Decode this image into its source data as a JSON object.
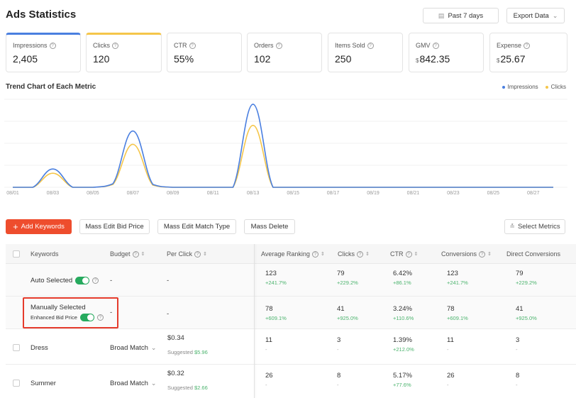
{
  "header": {
    "title": "Ads Statistics",
    "date_label": "Past 7 days",
    "export_label": "Export Data"
  },
  "metrics": [
    {
      "label": "Impressions",
      "value": "2,405",
      "accent": "#4a7fe0"
    },
    {
      "label": "Clicks",
      "value": "120",
      "accent": "#f5c64a"
    },
    {
      "label": "CTR",
      "value": "55%"
    },
    {
      "label": "Orders",
      "value": "102"
    },
    {
      "label": "Items Sold",
      "value": "250"
    },
    {
      "label": "GMV",
      "currency": "$",
      "value": "842.35"
    },
    {
      "label": "Expense",
      "currency": "$",
      "value": "25.67"
    }
  ],
  "chart": {
    "title": "Trend Chart of Each Metric",
    "legend": [
      {
        "name": "Impressions",
        "color": "#4a7fe0"
      },
      {
        "name": "Clicks",
        "color": "#f5c64a"
      }
    ],
    "x_labels": [
      "08/01",
      "08/03",
      "08/05",
      "08/07",
      "08/09",
      "08/11",
      "08/13",
      "08/15",
      "08/17",
      "08/19",
      "08/21",
      "08/23",
      "08/25",
      "08/27"
    ]
  },
  "chart_data": {
    "type": "line",
    "x": [
      "08/01",
      "08/02",
      "08/03",
      "08/04",
      "08/05",
      "08/06",
      "08/07",
      "08/08",
      "08/09",
      "08/10",
      "08/11",
      "08/12",
      "08/13",
      "08/14",
      "08/15",
      "08/16",
      "08/17",
      "08/18",
      "08/19",
      "08/20",
      "08/21",
      "08/22",
      "08/23",
      "08/24",
      "08/25",
      "08/26",
      "08/27",
      "08/28"
    ],
    "series": [
      {
        "name": "Impressions",
        "color": "#4a7fe0",
        "values": [
          0,
          0,
          26,
          0,
          0,
          5,
          80,
          4,
          0,
          0,
          0,
          0,
          118,
          0,
          0,
          0,
          0,
          0,
          0,
          0,
          0,
          0,
          0,
          0,
          0,
          0,
          0,
          0
        ]
      },
      {
        "name": "Clicks",
        "color": "#f5c64a",
        "values": [
          0,
          0,
          20,
          0,
          0,
          4,
          61,
          3,
          0,
          0,
          0,
          0,
          88,
          0,
          0,
          0,
          0,
          0,
          0,
          0,
          0,
          0,
          0,
          0,
          0,
          0,
          0,
          0
        ]
      }
    ],
    "ylim": [
      0,
      125
    ]
  },
  "toolbar": {
    "add_keywords": "Add Keywords",
    "mass_edit_bid": "Mass Edit Bid Price",
    "mass_edit_match": "Mass Edit Match Type",
    "mass_delete": "Mass Delete",
    "select_metrics": "Select Metrics"
  },
  "table": {
    "headers": {
      "keywords": "Keywords",
      "budget": "Budget",
      "per_click": "Per Click",
      "avg_ranking": "Average Ranking",
      "clicks": "Clicks",
      "ctr": "CTR",
      "conversions": "Conversions",
      "direct_conversions": "Direct Conversions"
    },
    "auto": {
      "label": "Auto Selected",
      "budget": "-",
      "per_click": "-",
      "avg_ranking": "123",
      "avg_ranking_d": "+241.7%",
      "clicks": "79",
      "clicks_d": "+229.2%",
      "ctr": "6.42%",
      "ctr_d": "+86.1%",
      "conv": "123",
      "conv_d": "+241.7%",
      "dconv": "79",
      "dconv_d": "+229.2%"
    },
    "manual": {
      "label": "Manually Selected",
      "enhanced": "Enhanced Bid Price",
      "budget": "-",
      "per_click": "-",
      "avg_ranking": "78",
      "avg_ranking_d": "+609.1%",
      "clicks": "41",
      "clicks_d": "+925.0%",
      "ctr": "3.24%",
      "ctr_d": "+110.6%",
      "conv": "78",
      "conv_d": "+609.1%",
      "dconv": "41",
      "dconv_d": "+925.0%"
    },
    "rows": [
      {
        "keyword": "Dress",
        "match": "Broad Match",
        "price": "$0.34",
        "suggested_label": "Suggested",
        "suggested": "$5.96",
        "avg_ranking": "11",
        "avg_ranking_d": "-",
        "clicks": "3",
        "clicks_d": "-",
        "ctr": "1.39%",
        "ctr_d": "+212.0%",
        "conv": "11",
        "conv_d": "-",
        "dconv": "3",
        "dconv_d": "-"
      },
      {
        "keyword": "Summer",
        "match": "Broad Match",
        "price": "$0.32",
        "suggested_label": "Suggested",
        "suggested": "$2.66",
        "avg_ranking": "26",
        "avg_ranking_d": "-",
        "clicks": "8",
        "clicks_d": "-",
        "ctr": "5.17%",
        "ctr_d": "+77.6%",
        "conv": "26",
        "conv_d": "-",
        "dconv": "8",
        "dconv_d": "-"
      }
    ]
  }
}
